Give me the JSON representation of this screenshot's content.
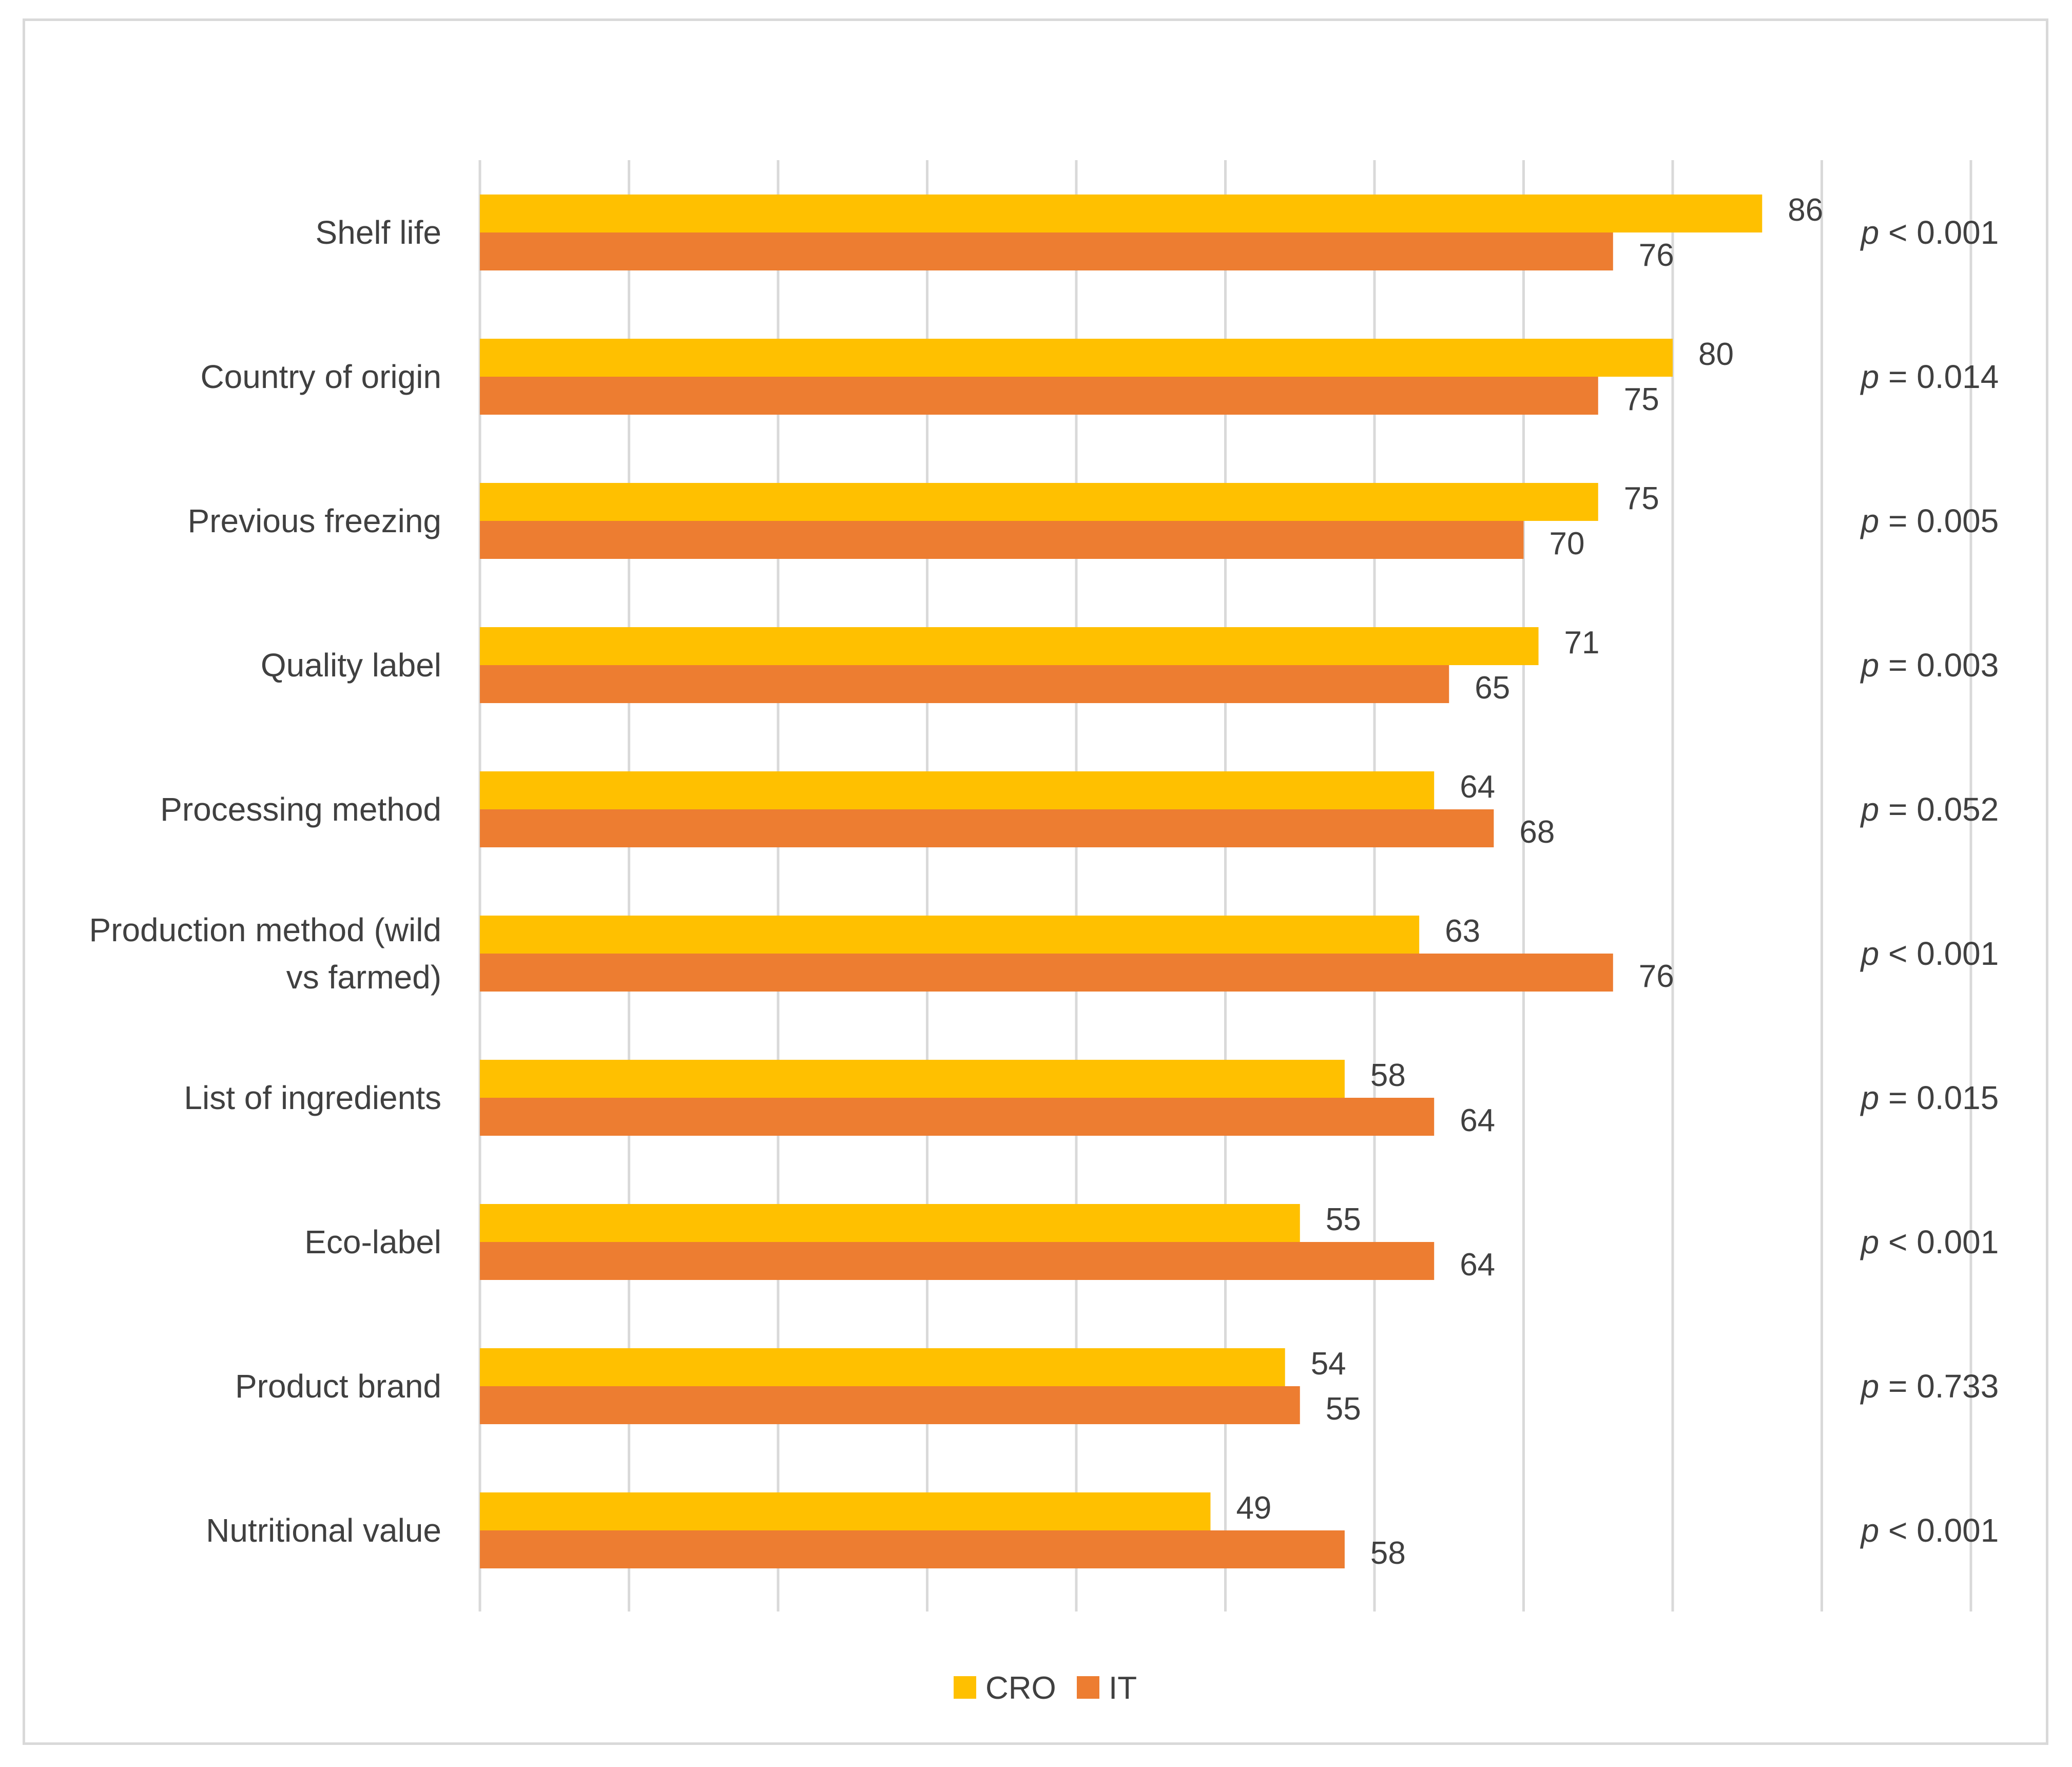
{
  "chart_data": {
    "type": "bar",
    "orientation": "horizontal",
    "title": "",
    "xlabel": "",
    "ylabel": "",
    "xlim": [
      0,
      100
    ],
    "grid": true,
    "legend_position": "bottom",
    "categories": [
      "Shelf life",
      "Country of origin",
      "Previous freezing",
      "Quality label",
      "Processing method",
      "Production method (wild vs farmed)",
      "List of ingredients",
      "Eco-label",
      "Product brand",
      "Nutritional value"
    ],
    "category_lines": [
      [
        "Shelf life"
      ],
      [
        "Country of origin"
      ],
      [
        "Previous freezing"
      ],
      [
        "Quality label"
      ],
      [
        "Processing method"
      ],
      [
        "Production method (wild",
        "vs farmed)"
      ],
      [
        "List of ingredients"
      ],
      [
        "Eco-label"
      ],
      [
        "Product brand"
      ],
      [
        "Nutritional value"
      ]
    ],
    "series": [
      {
        "name": "CRO",
        "color": "#FFC000",
        "values": [
          86,
          80,
          75,
          71,
          64,
          63,
          58,
          55,
          54,
          49
        ]
      },
      {
        "name": "IT",
        "color": "#ED7D31",
        "values": [
          76,
          75,
          70,
          65,
          68,
          76,
          64,
          64,
          55,
          58
        ]
      }
    ],
    "p_values": [
      {
        "prefix": "p",
        "text": " < 0.001"
      },
      {
        "prefix": "p",
        "text": " = 0.014"
      },
      {
        "prefix": "p",
        "text": " = 0.005"
      },
      {
        "prefix": "p",
        "text": " = 0.003"
      },
      {
        "prefix": "p",
        "text": " = 0.052"
      },
      {
        "prefix": "p",
        "text": " < 0.001"
      },
      {
        "prefix": "p",
        "text": " = 0.015"
      },
      {
        "prefix": "p",
        "text": " < 0.001"
      },
      {
        "prefix": "p",
        "text": " = 0.733"
      },
      {
        "prefix": "p",
        "text": " < 0.001"
      }
    ],
    "legend": [
      "CRO",
      "IT"
    ]
  }
}
